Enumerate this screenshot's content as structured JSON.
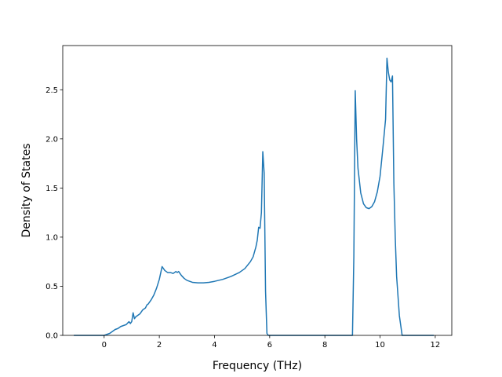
{
  "chart_data": {
    "type": "line",
    "title": "",
    "xlabel": "Frequency (THz)",
    "ylabel": "Density of States",
    "xlim": [
      -1.5,
      12.6
    ],
    "ylim": [
      0.0,
      2.95
    ],
    "xticks": [
      0,
      2,
      4,
      6,
      8,
      10,
      12
    ],
    "xtick_labels": [
      "0",
      "2",
      "4",
      "6",
      "8",
      "10",
      "12"
    ],
    "yticks": [
      0.0,
      0.5,
      1.0,
      1.5,
      2.0,
      2.5
    ],
    "ytick_labels": [
      "0.0",
      "0.5",
      "1.0",
      "1.5",
      "2.0",
      "2.5"
    ],
    "grid": false,
    "series": [
      {
        "color": "#1f77b4",
        "x": [
          -1.1,
          -0.6,
          0.0,
          0.2,
          0.3,
          0.4,
          0.5,
          0.6,
          0.7,
          0.8,
          0.9,
          0.95,
          1.0,
          1.05,
          1.1,
          1.15,
          1.2,
          1.3,
          1.4,
          1.5,
          1.55,
          1.6,
          1.7,
          1.8,
          1.9,
          2.0,
          2.1,
          2.2,
          2.3,
          2.4,
          2.5,
          2.6,
          2.65,
          2.7,
          2.8,
          2.9,
          3.0,
          3.2,
          3.4,
          3.6,
          3.8,
          4.0,
          4.3,
          4.6,
          4.9,
          5.1,
          5.3,
          5.4,
          5.5,
          5.55,
          5.6,
          5.65,
          5.7,
          5.75,
          5.8,
          5.85,
          5.9,
          5.95,
          6.0,
          6.1,
          8.9,
          9.0,
          9.05,
          9.1,
          9.15,
          9.2,
          9.3,
          9.4,
          9.5,
          9.6,
          9.7,
          9.8,
          9.9,
          10.0,
          10.1,
          10.2,
          10.25,
          10.3,
          10.35,
          10.4,
          10.45,
          10.5,
          10.55,
          10.6,
          10.7,
          10.8,
          10.85,
          10.9,
          11.95
        ],
        "y": [
          0.0,
          0.0,
          0.0,
          0.02,
          0.04,
          0.06,
          0.07,
          0.09,
          0.1,
          0.11,
          0.14,
          0.12,
          0.14,
          0.23,
          0.17,
          0.19,
          0.2,
          0.22,
          0.26,
          0.28,
          0.31,
          0.32,
          0.36,
          0.41,
          0.48,
          0.57,
          0.7,
          0.66,
          0.64,
          0.64,
          0.63,
          0.65,
          0.64,
          0.65,
          0.61,
          0.58,
          0.56,
          0.54,
          0.535,
          0.535,
          0.54,
          0.55,
          0.57,
          0.6,
          0.64,
          0.68,
          0.75,
          0.8,
          0.9,
          0.97,
          1.1,
          1.09,
          1.25,
          1.87,
          1.65,
          0.45,
          0.02,
          0.0,
          0.0,
          0.0,
          0.0,
          0.0,
          0.8,
          2.49,
          2.0,
          1.7,
          1.45,
          1.34,
          1.3,
          1.29,
          1.31,
          1.36,
          1.46,
          1.62,
          1.9,
          2.2,
          2.82,
          2.68,
          2.6,
          2.58,
          2.64,
          1.55,
          1.0,
          0.6,
          0.2,
          0.0,
          0.0,
          0.0,
          0.0
        ]
      }
    ]
  }
}
